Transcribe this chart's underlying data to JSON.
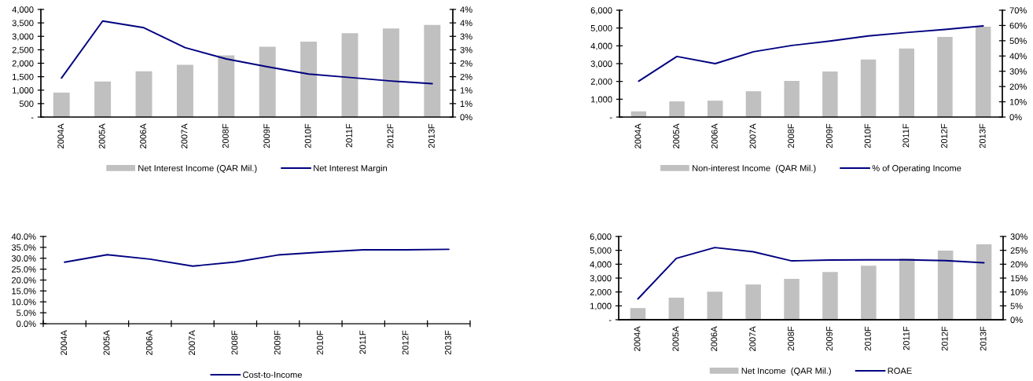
{
  "chart_data": [
    {
      "type": "bar",
      "categories": [
        "2004A",
        "2005A",
        "2006A",
        "2007A",
        "2008F",
        "2009F",
        "2010F",
        "2011F",
        "2012F",
        "2013F"
      ],
      "series": [
        {
          "name": "Net Interest Income (QAR Mil.)",
          "color": "#c0c0c0",
          "values": [
            910,
            1320,
            1700,
            1940,
            2290,
            2610,
            2800,
            3120,
            3290,
            3420
          ]
        },
        {
          "name": "Net Interest Margin",
          "type": "line",
          "axis": "y2",
          "color": "#000080",
          "values": [
            1.45,
            3.57,
            3.32,
            2.58,
            2.16,
            1.87,
            1.6,
            1.47,
            1.34,
            1.24
          ]
        }
      ],
      "ylim": [
        0,
        4000
      ],
      "yticks": [
        {
          "value": 0,
          "label": "-"
        },
        500,
        {
          "value": 1000,
          "label": "1,000"
        },
        {
          "value": 1500,
          "label": "1,500"
        },
        {
          "value": 2000,
          "label": "2,000"
        },
        {
          "value": 2500,
          "label": "2,500"
        },
        {
          "value": 3000,
          "label": "3,000"
        },
        {
          "value": 3500,
          "label": "3,500"
        },
        {
          "value": 4000,
          "label": "4,000"
        }
      ],
      "y2lim": [
        0,
        4
      ],
      "y2ticks": [
        {
          "value": 0,
          "label": "0%"
        },
        {
          "value": 0.5,
          "label": "1%"
        },
        {
          "value": 1,
          "label": "1%"
        },
        {
          "value": 1.5,
          "label": "2%"
        },
        {
          "value": 2,
          "label": "2%"
        },
        {
          "value": 2.5,
          "label": "3%"
        },
        {
          "value": 3,
          "label": "3%"
        },
        {
          "value": 3.5,
          "label": "4%"
        },
        {
          "value": 4,
          "label": "4%"
        }
      ],
      "legend": "bottom"
    },
    {
      "type": "bar",
      "categories": [
        "2004A",
        "2005A",
        "2006A",
        "2007A",
        "2008F",
        "2009F",
        "2010F",
        "2011F",
        "2012F",
        "2013F"
      ],
      "series": [
        {
          "name": "Non-interest Income  (QAR Mil.)",
          "color": "#c0c0c0",
          "values": [
            320,
            880,
            920,
            1450,
            2030,
            2560,
            3230,
            3850,
            4500,
            5070
          ]
        },
        {
          "name": "% of Operating Income",
          "type": "line",
          "axis": "y2",
          "color": "#000080",
          "values": [
            23.5,
            39.7,
            35.0,
            42.8,
            46.9,
            49.8,
            53.1,
            55.4,
            57.4,
            59.7
          ]
        }
      ],
      "ylim": [
        0,
        6000
      ],
      "yticks": [
        {
          "value": 0,
          "label": "-"
        },
        {
          "value": 1000,
          "label": "1,000"
        },
        {
          "value": 2000,
          "label": "2,000"
        },
        {
          "value": 3000,
          "label": "3,000"
        },
        {
          "value": 4000,
          "label": "4,000"
        },
        {
          "value": 5000,
          "label": "5,000"
        },
        {
          "value": 6000,
          "label": "6,000"
        }
      ],
      "y2lim": [
        0,
        70
      ],
      "y2ticks": [
        {
          "value": 0,
          "label": "0%"
        },
        {
          "value": 10,
          "label": "10%"
        },
        {
          "value": 20,
          "label": "20%"
        },
        {
          "value": 30,
          "label": "30%"
        },
        {
          "value": 40,
          "label": "40%"
        },
        {
          "value": 50,
          "label": "50%"
        },
        {
          "value": 60,
          "label": "60%"
        },
        {
          "value": 70,
          "label": "70%"
        }
      ],
      "legend": "bottom"
    },
    {
      "type": "line",
      "categories": [
        "2004A",
        "2005A",
        "2006A",
        "2007A",
        "2008F",
        "2009F",
        "2010F",
        "2011F",
        "2012F",
        "2013F"
      ],
      "series": [
        {
          "name": "Cost-to-Income",
          "color": "#000080",
          "values": [
            28.2,
            31.6,
            29.6,
            26.4,
            28.3,
            31.5,
            32.8,
            33.9,
            33.9,
            34.1
          ]
        }
      ],
      "ylim": [
        0,
        40
      ],
      "yticks": [
        {
          "value": 0,
          "label": "0.0%"
        },
        {
          "value": 5,
          "label": "5.0%"
        },
        {
          "value": 10,
          "label": "10.0%"
        },
        {
          "value": 15,
          "label": "15.0%"
        },
        {
          "value": 20,
          "label": "20.0%"
        },
        {
          "value": 25,
          "label": "25.0%"
        },
        {
          "value": 30,
          "label": "30.0%"
        },
        {
          "value": 35,
          "label": "35.0%"
        },
        {
          "value": 40,
          "label": "40.0%"
        }
      ],
      "legend": "bottom"
    },
    {
      "type": "bar",
      "categories": [
        "2004A",
        "2005A",
        "2006A",
        "2007A",
        "2008F",
        "2009F",
        "2010F",
        "2011F",
        "2012F",
        "2013F"
      ],
      "series": [
        {
          "name": "Net Income  (QAR Mil.)",
          "color": "#c0c0c0",
          "values": [
            840,
            1590,
            2020,
            2540,
            2940,
            3440,
            3890,
            4420,
            4980,
            5430
          ]
        },
        {
          "name": "ROAE",
          "type": "line",
          "axis": "y2",
          "color": "#000080",
          "values": [
            7.5,
            22.1,
            26.0,
            24.5,
            21.2,
            21.5,
            21.6,
            21.6,
            21.3,
            20.5
          ]
        }
      ],
      "ylim": [
        0,
        6000
      ],
      "yticks": [
        {
          "value": 0,
          "label": "-"
        },
        {
          "value": 1000,
          "label": "1,000"
        },
        {
          "value": 2000,
          "label": "2,000"
        },
        {
          "value": 3000,
          "label": "3,000"
        },
        {
          "value": 4000,
          "label": "4,000"
        },
        {
          "value": 5000,
          "label": "5,000"
        },
        {
          "value": 6000,
          "label": "6,000"
        }
      ],
      "y2lim": [
        0,
        30
      ],
      "y2ticks": [
        {
          "value": 0,
          "label": "0%"
        },
        {
          "value": 5,
          "label": "5%"
        },
        {
          "value": 10,
          "label": "10%"
        },
        {
          "value": 15,
          "label": "15%"
        },
        {
          "value": 20,
          "label": "20%"
        },
        {
          "value": 25,
          "label": "25%"
        },
        {
          "value": 30,
          "label": "30%"
        }
      ],
      "legend": "bottom"
    }
  ]
}
